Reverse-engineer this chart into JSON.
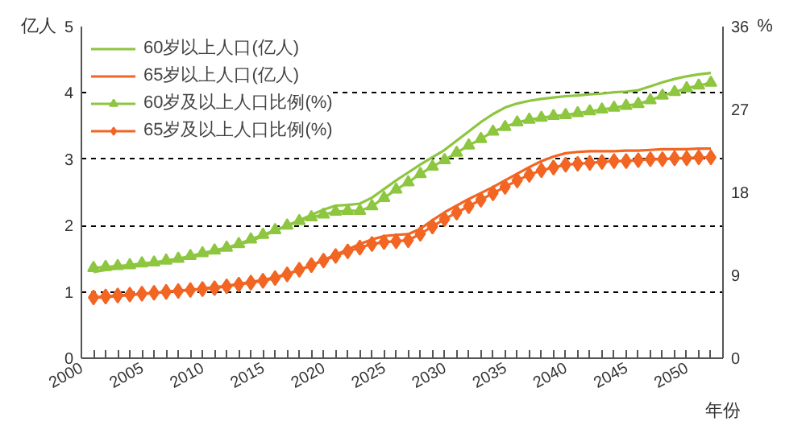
{
  "chart_data": {
    "type": "line",
    "ylabel": "亿人",
    "y2label": "%",
    "xlabel": "年份",
    "x": [
      2001,
      2002,
      2003,
      2004,
      2005,
      2006,
      2007,
      2008,
      2009,
      2010,
      2011,
      2012,
      2013,
      2014,
      2015,
      2016,
      2017,
      2018,
      2019,
      2020,
      2021,
      2022,
      2023,
      2024,
      2025,
      2026,
      2027,
      2028,
      2029,
      2030,
      2031,
      2032,
      2033,
      2034,
      2035,
      2036,
      2037,
      2038,
      2039,
      2040,
      2041,
      2042,
      2043,
      2044,
      2045,
      2046,
      2047,
      2048,
      2049,
      2050,
      2051,
      2052
    ],
    "xlim": [
      2000,
      2053
    ],
    "xticks": [
      2000,
      {
        "value": 2001,
        "label": null
      },
      {
        "value": 2002,
        "label": null
      },
      {
        "value": 2003,
        "label": null
      },
      {
        "value": 2004,
        "label": null
      },
      2005,
      {
        "value": 2006,
        "label": null
      },
      {
        "value": 2007,
        "label": null
      },
      {
        "value": 2008,
        "label": null
      },
      {
        "value": 2009,
        "label": null
      },
      2010,
      {
        "value": 2011,
        "label": null
      },
      {
        "value": 2012,
        "label": null
      },
      {
        "value": 2013,
        "label": null
      },
      {
        "value": 2014,
        "label": null
      },
      2015,
      {
        "value": 2016,
        "label": null
      },
      {
        "value": 2017,
        "label": null
      },
      {
        "value": 2018,
        "label": null
      },
      {
        "value": 2019,
        "label": null
      },
      2020,
      {
        "value": 2021,
        "label": null
      },
      {
        "value": 2022,
        "label": null
      },
      {
        "value": 2023,
        "label": null
      },
      {
        "value": 2024,
        "label": null
      },
      2025,
      {
        "value": 2026,
        "label": null
      },
      {
        "value": 2027,
        "label": null
      },
      {
        "value": 2028,
        "label": null
      },
      {
        "value": 2029,
        "label": null
      },
      2030,
      {
        "value": 2031,
        "label": null
      },
      {
        "value": 2032,
        "label": null
      },
      {
        "value": 2033,
        "label": null
      },
      {
        "value": 2034,
        "label": null
      },
      2035,
      {
        "value": 2036,
        "label": null
      },
      {
        "value": 2037,
        "label": null
      },
      {
        "value": 2038,
        "label": null
      },
      {
        "value": 2039,
        "label": null
      },
      2040,
      {
        "value": 2041,
        "label": null
      },
      {
        "value": 2042,
        "label": null
      },
      {
        "value": 2043,
        "label": null
      },
      {
        "value": 2044,
        "label": null
      },
      2045,
      {
        "value": 2046,
        "label": null
      },
      {
        "value": 2047,
        "label": null
      },
      {
        "value": 2048,
        "label": null
      },
      {
        "value": 2049,
        "label": null
      },
      2050,
      {
        "value": 2051,
        "label": null
      },
      {
        "value": 2052,
        "label": null
      }
    ],
    "ylim": [
      0,
      5
    ],
    "yticks": [
      0,
      1,
      2,
      3,
      4,
      5
    ],
    "y2lim": [
      0,
      36
    ],
    "y2ticks": [
      0,
      9,
      18,
      27,
      36
    ],
    "grid": "y",
    "legend": "top left",
    "series": [
      {
        "name": "60岁以上人口(亿人)",
        "color": "#8dc63f",
        "marker": "none",
        "values": [
          1.3,
          1.33,
          1.36,
          1.38,
          1.4,
          1.42,
          1.45,
          1.48,
          1.52,
          1.56,
          1.6,
          1.65,
          1.71,
          1.77,
          1.84,
          1.92,
          2.0,
          2.08,
          2.16,
          2.24,
          2.3,
          2.31,
          2.33,
          2.42,
          2.55,
          2.68,
          2.8,
          2.92,
          3.03,
          3.14,
          3.28,
          3.42,
          3.56,
          3.68,
          3.78,
          3.84,
          3.88,
          3.91,
          3.93,
          3.95,
          3.96,
          3.98,
          3.99,
          4.01,
          4.02,
          4.04,
          4.1,
          4.16,
          4.21,
          4.25,
          4.28,
          4.3
        ]
      },
      {
        "name": "65岁以上人口(亿人)",
        "color": "#f26522",
        "marker": "none",
        "values": [
          0.91,
          0.92,
          0.94,
          0.95,
          0.97,
          0.98,
          1.0,
          1.02,
          1.03,
          1.05,
          1.07,
          1.09,
          1.12,
          1.15,
          1.18,
          1.22,
          1.27,
          1.33,
          1.4,
          1.48,
          1.56,
          1.64,
          1.72,
          1.79,
          1.84,
          1.86,
          1.87,
          1.95,
          2.08,
          2.2,
          2.3,
          2.4,
          2.49,
          2.58,
          2.68,
          2.78,
          2.88,
          2.97,
          3.04,
          3.09,
          3.11,
          3.12,
          3.12,
          3.12,
          3.13,
          3.13,
          3.14,
          3.15,
          3.15,
          3.15,
          3.16,
          3.16
        ]
      },
      {
        "name": "60岁及以上人口比例(%)",
        "color": "#8dc63f",
        "marker": "triangle",
        "axis": "y2",
        "values": [
          9.8,
          9.9,
          10.0,
          10.1,
          10.3,
          10.4,
          10.6,
          10.8,
          11.1,
          11.4,
          11.7,
          12.0,
          12.4,
          12.9,
          13.4,
          13.9,
          14.4,
          14.9,
          15.3,
          15.6,
          15.9,
          16.0,
          16.0,
          16.5,
          17.4,
          18.3,
          19.1,
          20.0,
          20.8,
          21.5,
          22.3,
          23.1,
          23.8,
          24.6,
          25.1,
          25.6,
          25.9,
          26.1,
          26.3,
          26.4,
          26.6,
          26.8,
          27.0,
          27.2,
          27.4,
          27.6,
          28.0,
          28.5,
          28.9,
          29.3,
          29.6,
          29.9
        ]
      },
      {
        "name": "65岁及以上人口比例(%)",
        "color": "#f26522",
        "marker": "diamond",
        "axis": "y2",
        "values": [
          6.6,
          6.7,
          6.8,
          6.9,
          7.0,
          7.1,
          7.2,
          7.3,
          7.4,
          7.5,
          7.6,
          7.8,
          8.0,
          8.2,
          8.4,
          8.7,
          9.1,
          9.6,
          10.1,
          10.6,
          11.1,
          11.6,
          12.0,
          12.4,
          12.6,
          12.7,
          12.8,
          13.5,
          14.3,
          15.1,
          15.8,
          16.5,
          17.2,
          17.9,
          18.6,
          19.3,
          19.9,
          20.4,
          20.7,
          21.0,
          21.1,
          21.2,
          21.3,
          21.4,
          21.4,
          21.5,
          21.6,
          21.6,
          21.7,
          21.7,
          21.8,
          21.8
        ]
      }
    ]
  }
}
